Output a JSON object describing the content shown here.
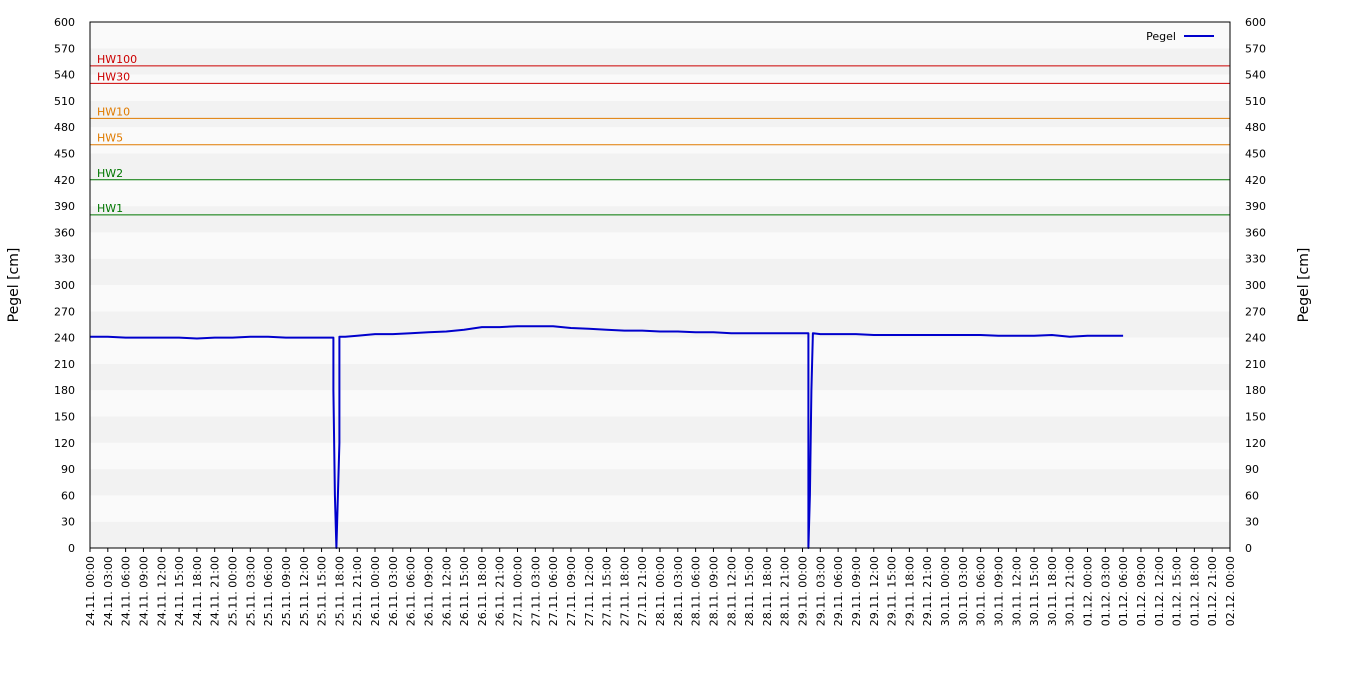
{
  "chart_data": {
    "type": "line",
    "ylabel_left": "Pegel [cm]",
    "ylabel_right": "Pegel [cm]",
    "ylim": [
      0,
      600
    ],
    "y_ticks": [
      0,
      30,
      60,
      90,
      120,
      150,
      180,
      210,
      240,
      270,
      300,
      330,
      360,
      390,
      420,
      450,
      480,
      510,
      540,
      570,
      600
    ],
    "x_ticks": [
      "24.11. 00:00",
      "24.11. 03:00",
      "24.11. 06:00",
      "24.11. 09:00",
      "24.11. 12:00",
      "24.11. 15:00",
      "24.11. 18:00",
      "24.11. 21:00",
      "25.11. 00:00",
      "25.11. 03:00",
      "25.11. 06:00",
      "25.11. 09:00",
      "25.11. 12:00",
      "25.11. 15:00",
      "25.11. 18:00",
      "25.11. 21:00",
      "26.11. 00:00",
      "26.11. 03:00",
      "26.11. 06:00",
      "26.11. 09:00",
      "26.11. 12:00",
      "26.11. 15:00",
      "26.11. 18:00",
      "26.11. 21:00",
      "27.11. 00:00",
      "27.11. 03:00",
      "27.11. 06:00",
      "27.11. 09:00",
      "27.11. 12:00",
      "27.11. 15:00",
      "27.11. 18:00",
      "27.11. 21:00",
      "28.11. 00:00",
      "28.11. 03:00",
      "28.11. 06:00",
      "28.11. 09:00",
      "28.11. 12:00",
      "28.11. 15:00",
      "28.11. 18:00",
      "28.11. 21:00",
      "29.11. 00:00",
      "29.11. 03:00",
      "29.11. 06:00",
      "29.11. 09:00",
      "29.11. 12:00",
      "29.11. 15:00",
      "29.11. 18:00",
      "29.11. 21:00",
      "30.11. 00:00",
      "30.11. 03:00",
      "30.11. 06:00",
      "30.11. 09:00",
      "30.11. 12:00",
      "30.11. 15:00",
      "30.11. 18:00",
      "30.11. 21:00",
      "01.12. 00:00",
      "01.12. 03:00",
      "01.12. 06:00",
      "01.12. 09:00",
      "01.12. 12:00",
      "01.12. 15:00",
      "01.12. 18:00",
      "01.12. 21:00",
      "02.12. 00:00"
    ],
    "x_start": "24.11. 00:00",
    "x_end": "02.12. 00:00",
    "grid": "horizontal alternating bands",
    "legend": {
      "position": "top-right",
      "entries": [
        {
          "name": "Pegel",
          "color": "#0000cc"
        }
      ]
    },
    "thresholds": [
      {
        "label": "HW100",
        "value": 550,
        "color": "#cc0000"
      },
      {
        "label": "HW30",
        "value": 530,
        "color": "#cc0000"
      },
      {
        "label": "HW10",
        "value": 490,
        "color": "#e07b00"
      },
      {
        "label": "HW5",
        "value": 460,
        "color": "#e07b00"
      },
      {
        "label": "HW2",
        "value": 420,
        "color": "#007700"
      },
      {
        "label": "HW1",
        "value": 380,
        "color": "#007700"
      }
    ],
    "series": [
      {
        "name": "Pegel",
        "color": "#0000cc",
        "points": [
          [
            "24.11. 00:00",
            241
          ],
          [
            "24.11. 03:00",
            241
          ],
          [
            "24.11. 06:00",
            240
          ],
          [
            "24.11. 09:00",
            240
          ],
          [
            "24.11. 12:00",
            240
          ],
          [
            "24.11. 15:00",
            240
          ],
          [
            "24.11. 18:00",
            239
          ],
          [
            "24.11. 21:00",
            240
          ],
          [
            "25.11. 00:00",
            240
          ],
          [
            "25.11. 03:00",
            241
          ],
          [
            "25.11. 06:00",
            241
          ],
          [
            "25.11. 09:00",
            240
          ],
          [
            "25.11. 12:00",
            240
          ],
          [
            "25.11. 15:00",
            240
          ],
          [
            "25.11. 17:00",
            240
          ],
          [
            "25.11. 17:00",
            180
          ],
          [
            "25.11. 17:15",
            60
          ],
          [
            "25.11. 17:30",
            0
          ],
          [
            "25.11. 18:00",
            120
          ],
          [
            "25.11. 18:00",
            241
          ],
          [
            "25.11. 19:00",
            241
          ],
          [
            "25.11. 21:00",
            242
          ],
          [
            "26.11. 00:00",
            244
          ],
          [
            "26.11. 03:00",
            244
          ],
          [
            "26.11. 06:00",
            245
          ],
          [
            "26.11. 09:00",
            246
          ],
          [
            "26.11. 12:00",
            247
          ],
          [
            "26.11. 15:00",
            249
          ],
          [
            "26.11. 18:00",
            252
          ],
          [
            "26.11. 21:00",
            252
          ],
          [
            "27.11. 00:00",
            253
          ],
          [
            "27.11. 03:00",
            253
          ],
          [
            "27.11. 06:00",
            253
          ],
          [
            "27.11. 09:00",
            251
          ],
          [
            "27.11. 12:00",
            250
          ],
          [
            "27.11. 15:00",
            249
          ],
          [
            "27.11. 18:00",
            248
          ],
          [
            "27.11. 21:00",
            248
          ],
          [
            "28.11. 00:00",
            247
          ],
          [
            "28.11. 03:00",
            247
          ],
          [
            "28.11. 06:00",
            246
          ],
          [
            "28.11. 09:00",
            246
          ],
          [
            "28.11. 12:00",
            245
          ],
          [
            "28.11. 15:00",
            245
          ],
          [
            "28.11. 18:00",
            245
          ],
          [
            "28.11. 21:00",
            245
          ],
          [
            "29.11. 00:00",
            245
          ],
          [
            "29.11. 01:00",
            245
          ],
          [
            "29.11. 01:00",
            0
          ],
          [
            "29.11. 01:15",
            60
          ],
          [
            "29.11. 01:30",
            180
          ],
          [
            "29.11. 01:45",
            245
          ],
          [
            "29.11. 03:00",
            244
          ],
          [
            "29.11. 06:00",
            244
          ],
          [
            "29.11. 09:00",
            244
          ],
          [
            "29.11. 12:00",
            243
          ],
          [
            "29.11. 15:00",
            243
          ],
          [
            "29.11. 18:00",
            243
          ],
          [
            "29.11. 21:00",
            243
          ],
          [
            "30.11. 00:00",
            243
          ],
          [
            "30.11. 03:00",
            243
          ],
          [
            "30.11. 06:00",
            243
          ],
          [
            "30.11. 09:00",
            242
          ],
          [
            "30.11. 12:00",
            242
          ],
          [
            "30.11. 15:00",
            242
          ],
          [
            "30.11. 18:00",
            243
          ],
          [
            "30.11. 21:00",
            241
          ],
          [
            "01.12. 00:00",
            242
          ],
          [
            "01.12. 03:00",
            242
          ],
          [
            "01.12. 06:00",
            242
          ]
        ]
      }
    ]
  }
}
